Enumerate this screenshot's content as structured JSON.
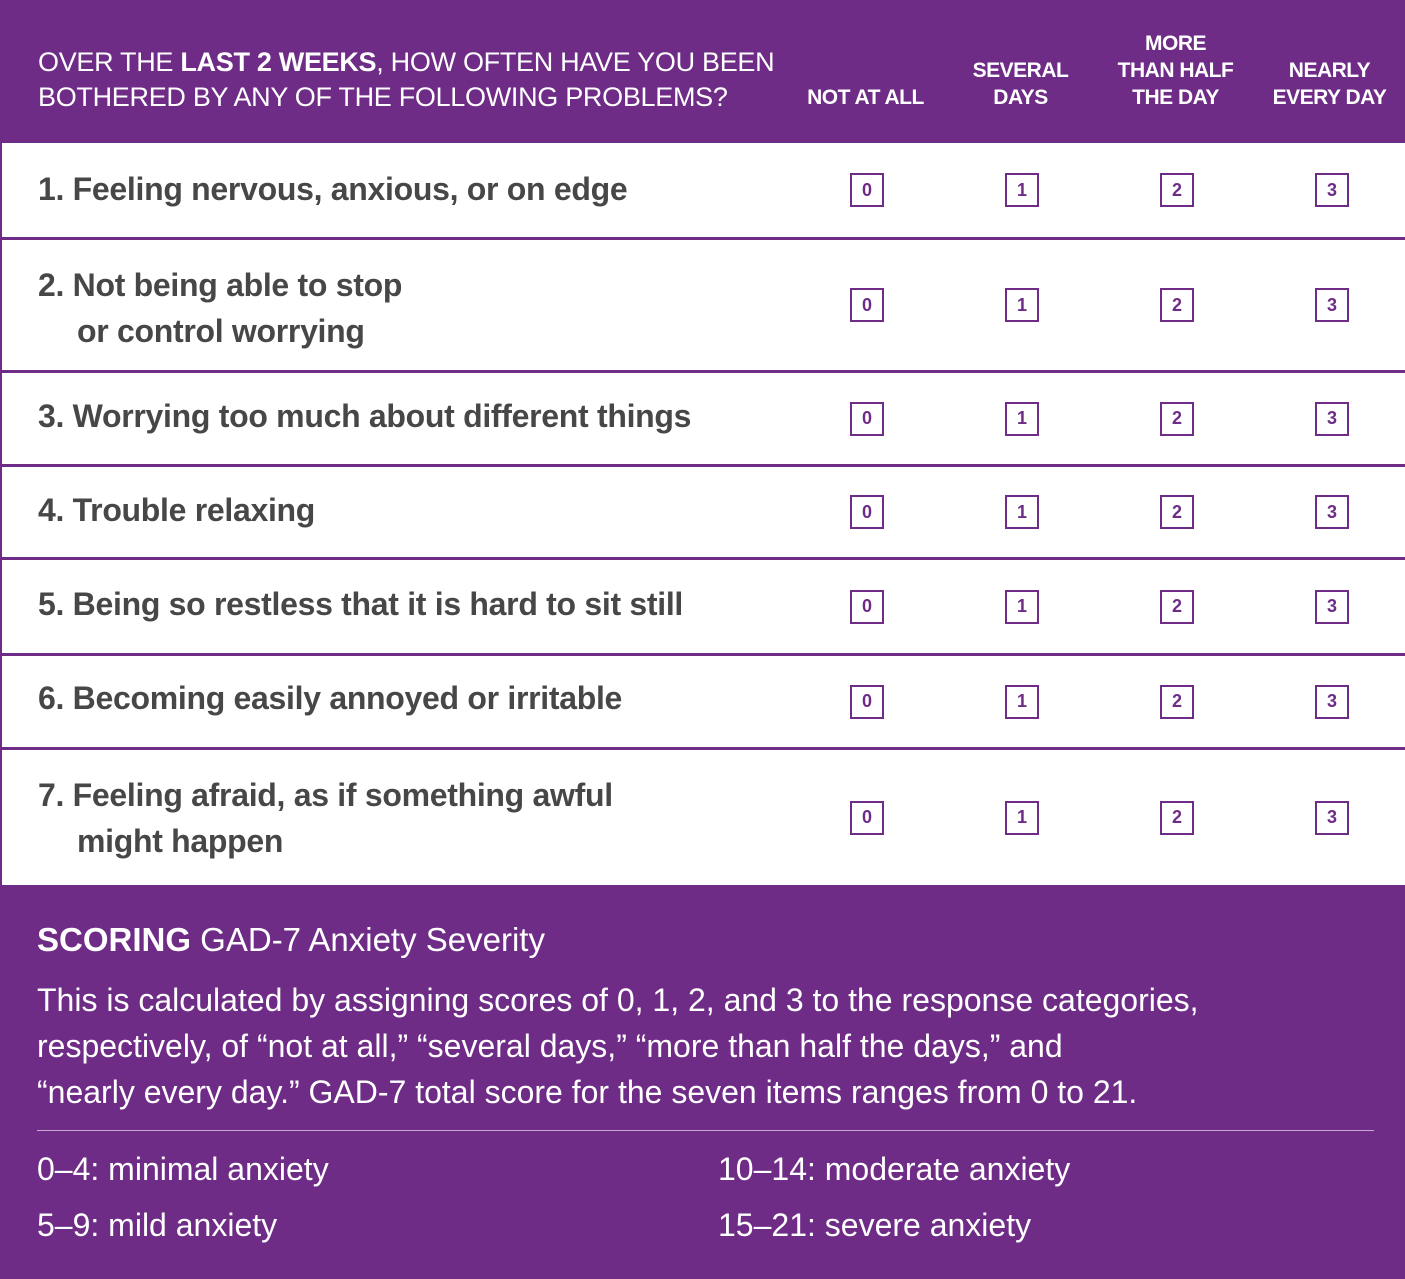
{
  "header": {
    "question_prefix": "OVER THE ",
    "question_bold": "LAST 2 WEEKS",
    "question_line1_suffix": ", HOW OFTEN HAVE YOU BEEN",
    "question_line2": "BOTHERED BY ANY OF THE FOLLOWING PROBLEMS?",
    "columns": [
      {
        "lines": [
          "NOT AT ALL"
        ]
      },
      {
        "lines": [
          "SEVERAL",
          "DAYS"
        ]
      },
      {
        "lines": [
          "MORE",
          "THAN HALF",
          "THE DAY"
        ]
      },
      {
        "lines": [
          "NEARLY",
          "EVERY DAY"
        ]
      }
    ]
  },
  "questions": [
    {
      "line1": "1. Feeling nervous, anxious, or on edge",
      "line2": "",
      "scores": [
        "0",
        "1",
        "2",
        "3"
      ]
    },
    {
      "line1": "2. Not being able to stop",
      "line2": "or control worrying",
      "scores": [
        "0",
        "1",
        "2",
        "3"
      ]
    },
    {
      "line1": "3. Worrying too much about different things",
      "line2": "",
      "scores": [
        "0",
        "1",
        "2",
        "3"
      ]
    },
    {
      "line1": "4. Trouble relaxing",
      "line2": "",
      "scores": [
        "0",
        "1",
        "2",
        "3"
      ]
    },
    {
      "line1": "5. Being so restless that it is hard to sit still",
      "line2": "",
      "scores": [
        "0",
        "1",
        "2",
        "3"
      ]
    },
    {
      "line1": "6. Becoming easily annoyed or irritable",
      "line2": "",
      "scores": [
        "0",
        "1",
        "2",
        "3"
      ]
    },
    {
      "line1": "7. Feeling afraid, as if something awful",
      "line2": "might happen",
      "scores": [
        "0",
        "1",
        "2",
        "3"
      ]
    }
  ],
  "scoring": {
    "title_bold": "SCORING",
    "title": " GAD-7 Anxiety Severity",
    "line1": "This is calculated by assigning scores of 0, 1, 2, and 3 to the response categories,",
    "line2": "respectively, of “not at all,” “several days,” “more than half the days,” and",
    "line3": "“nearly every day.”  GAD-7 total score for the seven items ranges from 0 to 21.",
    "ranges": [
      "0–4: minimal anxiety",
      "5–9: mild anxiety",
      "10–14: moderate anxiety",
      "15–21: severe anxiety"
    ]
  },
  "colors": {
    "brand": "#6f2c87",
    "text": "#474747"
  }
}
